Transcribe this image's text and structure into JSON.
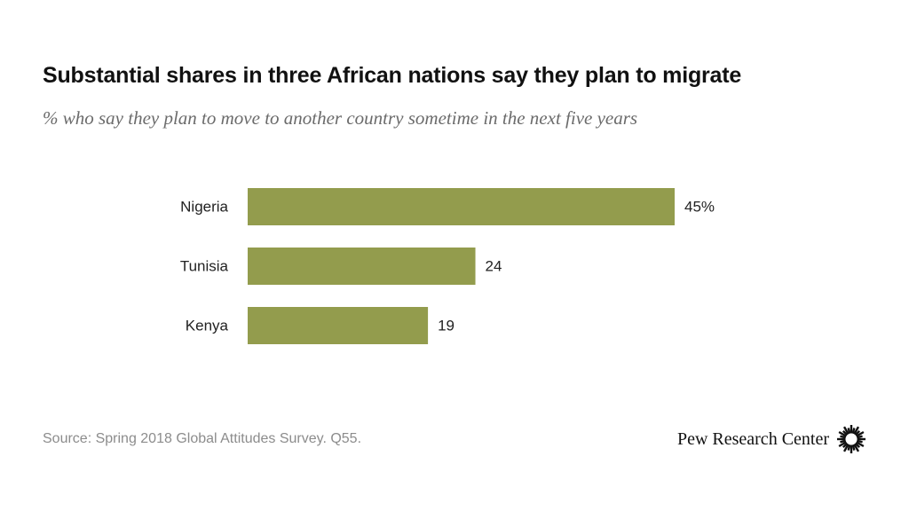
{
  "header": {
    "title": "Substantial shares in three African nations say they plan to migrate",
    "subtitle": "% who say they plan to move to another country sometime in the next five years"
  },
  "chart_data": {
    "type": "bar",
    "orientation": "horizontal",
    "categories": [
      "Nigeria",
      "Tunisia",
      "Kenya"
    ],
    "values": [
      45,
      24,
      19
    ],
    "value_labels": [
      "45%",
      "24",
      "19"
    ],
    "bar_color": "#939c4d",
    "xlim": [
      0,
      45
    ],
    "grid": false,
    "legend": "none"
  },
  "footer": {
    "source": "Source: Spring 2018 Global Attitudes Survey. Q55.",
    "brand": "Pew Research Center",
    "brand_icon": "pew-sunburst-icon"
  }
}
